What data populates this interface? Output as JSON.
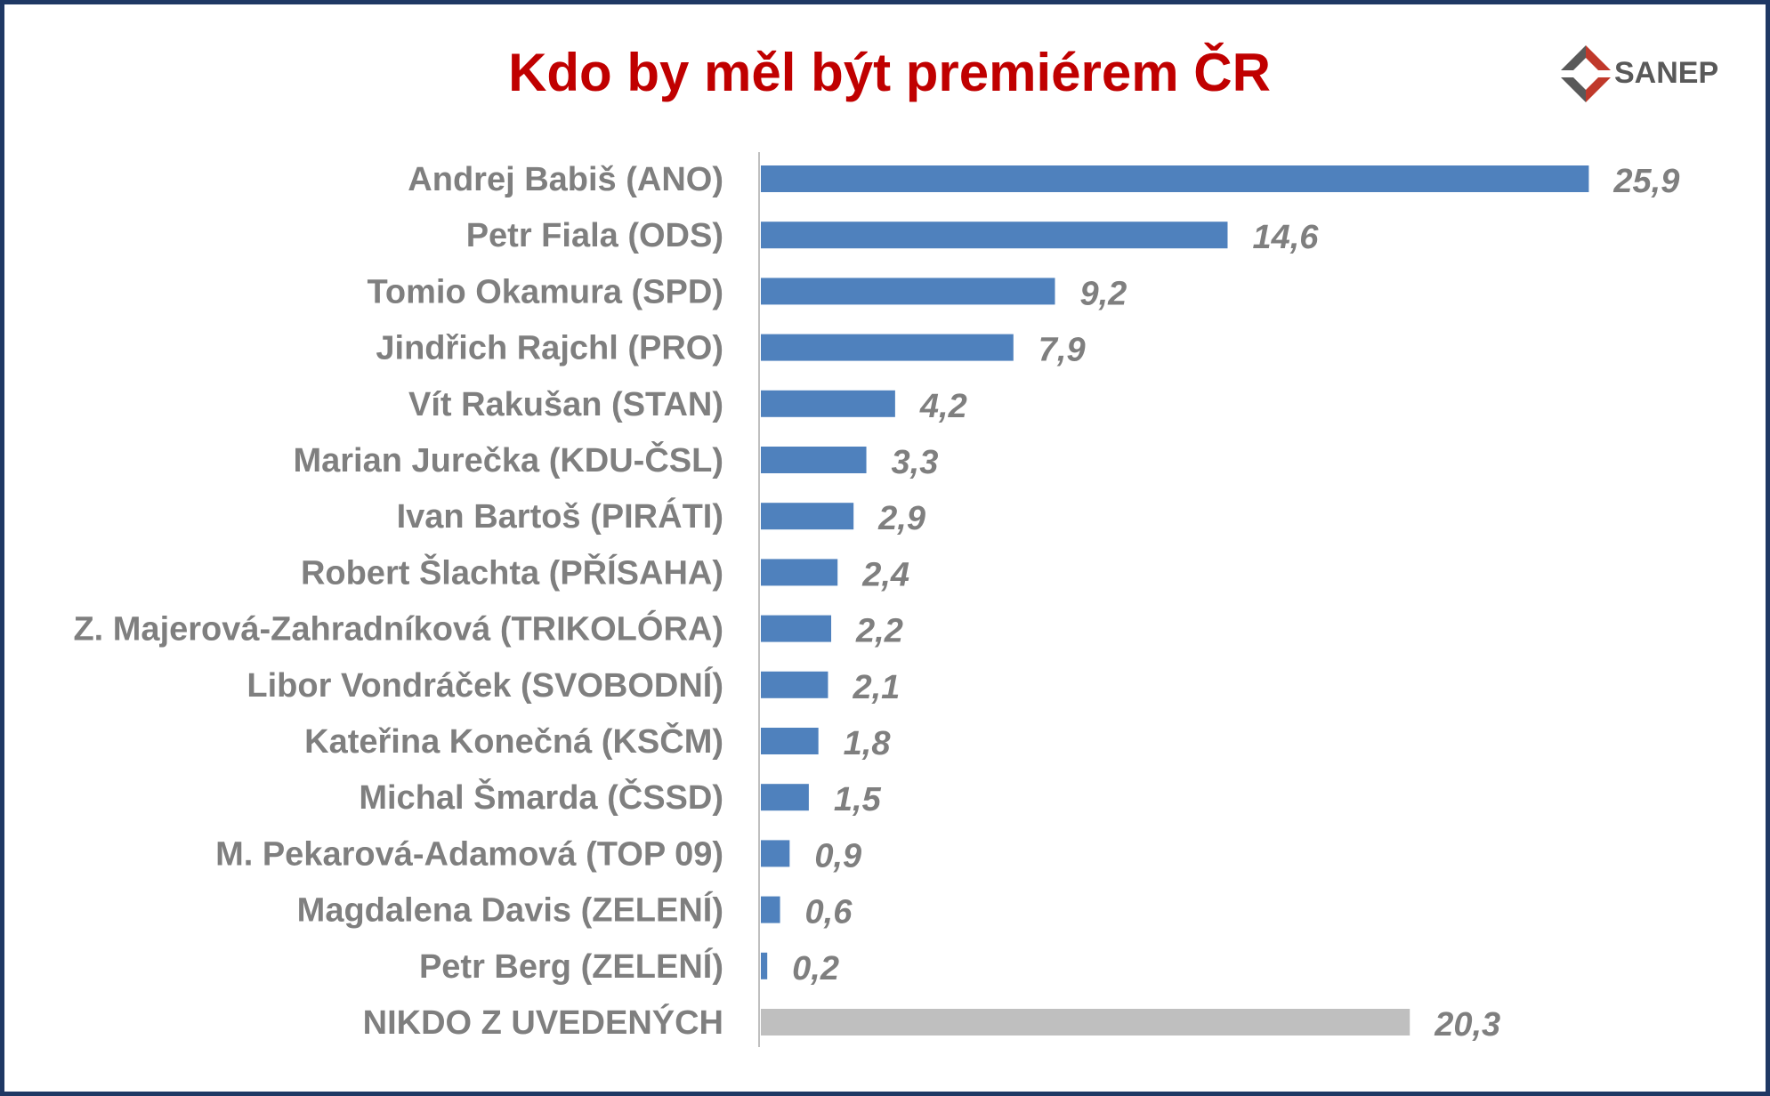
{
  "chart_data": {
    "type": "bar",
    "orientation": "horizontal",
    "title": "Kdo by měl být premiérem ČR",
    "categories": [
      "Andrej Babiš (ANO)",
      "Petr Fiala (ODS)",
      "Tomio Okamura (SPD)",
      "Jindřich Rajchl (PRO)",
      "Vít Rakušan (STAN)",
      "Marian Jurečka (KDU-ČSL)",
      "Ivan Bartoš (PIRÁTI)",
      "Robert Šlachta (PŘÍSAHA)",
      "Z. Majerová-Zahradníková (TRIKOLÓRA)",
      "Libor Vondráček (SVOBODNÍ)",
      "Kateřina Konečná (KSČM)",
      "Michal Šmarda (ČSSD)",
      "M. Pekarová-Adamová (TOP 09)",
      "Magdalena Davis (ZELENÍ)",
      "Petr Berg (ZELENÍ)",
      "NIKDO Z UVEDENÝCH"
    ],
    "values": [
      25.9,
      14.6,
      9.2,
      7.9,
      4.2,
      3.3,
      2.9,
      2.4,
      2.2,
      2.1,
      1.8,
      1.5,
      0.9,
      0.6,
      0.2,
      20.3
    ],
    "value_labels": [
      "25,9",
      "14,6",
      "9,2",
      "7,9",
      "4,2",
      "3,3",
      "2,9",
      "2,4",
      "2,2",
      "2,1",
      "1,8",
      "1,5",
      "0,9",
      "0,6",
      "0,2",
      "20,3"
    ],
    "bar_colors": [
      "#4f81bd",
      "#4f81bd",
      "#4f81bd",
      "#4f81bd",
      "#4f81bd",
      "#4f81bd",
      "#4f81bd",
      "#4f81bd",
      "#4f81bd",
      "#4f81bd",
      "#4f81bd",
      "#4f81bd",
      "#4f81bd",
      "#4f81bd",
      "#4f81bd",
      "#bfbfbf"
    ],
    "xlim": [
      0,
      26
    ],
    "grid": false,
    "legend": "none"
  },
  "logo": {
    "text": "SANEP"
  },
  "colors": {
    "title": "#c00000",
    "border": "#1f3864",
    "label": "#7f7f7f",
    "axis": "#bfbfbf",
    "logo_red": "#c0392b",
    "logo_gray": "#595959"
  }
}
